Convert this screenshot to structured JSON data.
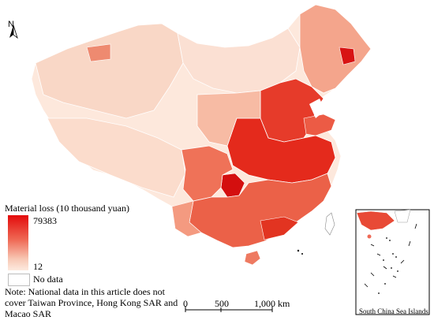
{
  "legend": {
    "title": "Material loss (10 thousand yuan)",
    "max_label": "79383",
    "min_label": "12",
    "nodata_label": "No data",
    "ramp_colors": [
      "#e30b0b",
      "#ef6a56",
      "#f8c9b6",
      "#fdeadf"
    ]
  },
  "note": "Note: National data in this article does not cover Taiwan Province, Hong Kong SAR and Macao SAR",
  "scalebar": {
    "tick0": "0",
    "tick1": "500",
    "tick2": "1,000 km"
  },
  "north_arrow": {
    "label": "N"
  },
  "inset": {
    "caption": "South China Sea Islands"
  },
  "colors": {
    "border": "#ffffff",
    "low": "#fde8dc",
    "light": "#f9cdb9",
    "mid": "#f29e85",
    "high": "#e95a45",
    "very_high": "#d81414"
  }
}
